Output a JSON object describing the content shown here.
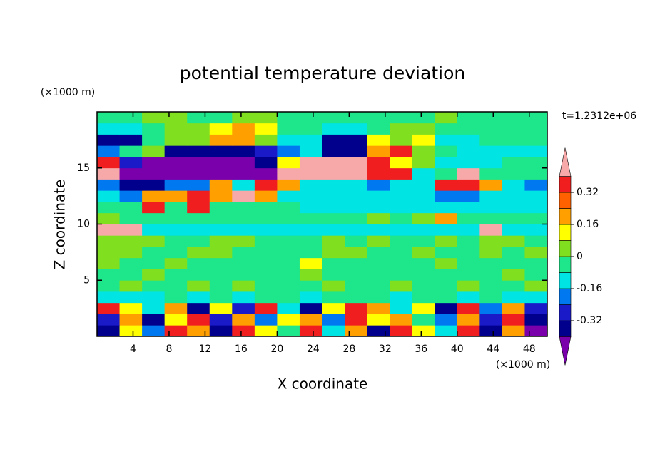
{
  "chart_data": {
    "type": "contour",
    "title": "potential temperature deviation",
    "xlabel": "X coordinate",
    "ylabel": "Z coordinate",
    "x_unit": "(×1000 m)",
    "y_unit": "(×1000 m)",
    "annotation": "t=1.2312e+06",
    "xlim": [
      0,
      50
    ],
    "ylim": [
      0,
      20
    ],
    "xticks": [
      4,
      8,
      12,
      16,
      20,
      24,
      28,
      32,
      36,
      40,
      44,
      48
    ],
    "yticks": [
      5,
      10,
      15
    ],
    "levels": [
      -0.4,
      -0.32,
      -0.24,
      -0.16,
      -0.08,
      0,
      0.08,
      0.16,
      0.24,
      0.32,
      0.4
    ],
    "colorbar_ticks": [
      0.32,
      0.16,
      0,
      -0.16,
      -0.32
    ],
    "colors": [
      "#7a00ac",
      "#00008c",
      "#1a1ac8",
      "#0078f0",
      "#00e4e4",
      "#1ee68a",
      "#80e020",
      "#ffff00",
      "#ffa000",
      "#ff6000",
      "#f01e1e",
      "#f7a8a8"
    ],
    "x": [
      1.25,
      3.75,
      6.25,
      8.75,
      11.25,
      13.75,
      16.25,
      18.75,
      21.25,
      23.75,
      26.25,
      28.75,
      31.25,
      33.75,
      36.25,
      38.75,
      41.25,
      43.75,
      46.25,
      48.75
    ],
    "y": [
      0.5,
      1.5,
      2.5,
      3.5,
      4.5,
      5.5,
      6.5,
      7.5,
      8.5,
      9.5,
      10.5,
      11.5,
      12.5,
      13.5,
      14.5,
      15.5,
      16.5,
      17.5,
      18.5,
      19.5
    ],
    "z": [
      [
        -0.36,
        0.12,
        -0.2,
        0.36,
        0.2,
        -0.36,
        0.36,
        0.12,
        -0.04,
        0.36,
        -0.12,
        0.2,
        -0.36,
        0.36,
        0.12,
        -0.12,
        0.36,
        -0.36,
        0.2,
        -0.45
      ],
      [
        -0.28,
        0.2,
        -0.36,
        0.12,
        0.36,
        -0.28,
        0.2,
        -0.2,
        0.12,
        0.2,
        -0.2,
        0.36,
        0.12,
        0.2,
        -0.04,
        -0.2,
        0.2,
        -0.28,
        0.36,
        -0.36
      ],
      [
        0.36,
        0.12,
        -0.12,
        0.2,
        -0.36,
        0.12,
        -0.28,
        0.36,
        -0.12,
        -0.36,
        0.12,
        0.36,
        0.2,
        -0.12,
        0.12,
        -0.36,
        0.36,
        -0.2,
        0.2,
        -0.28
      ],
      [
        -0.12,
        -0.12,
        -0.12,
        -0.04,
        -0.12,
        -0.04,
        -0.12,
        -0.04,
        -0.04,
        -0.12,
        -0.04,
        -0.04,
        -0.04,
        -0.12,
        -0.04,
        -0.04,
        -0.12,
        -0.04,
        -0.12,
        -0.12
      ],
      [
        -0.04,
        0.04,
        -0.04,
        -0.04,
        0.04,
        -0.04,
        0.04,
        -0.04,
        -0.04,
        -0.04,
        0.04,
        -0.04,
        -0.04,
        0.04,
        -0.04,
        -0.04,
        0.04,
        -0.04,
        -0.04,
        0.04
      ],
      [
        -0.04,
        -0.04,
        0.04,
        -0.04,
        -0.04,
        -0.04,
        -0.04,
        -0.04,
        -0.04,
        0.04,
        -0.04,
        -0.04,
        -0.04,
        -0.04,
        -0.04,
        -0.04,
        -0.04,
        -0.04,
        0.04,
        -0.04
      ],
      [
        0.04,
        -0.04,
        -0.04,
        0.04,
        -0.04,
        -0.04,
        -0.04,
        -0.04,
        -0.04,
        0.12,
        -0.04,
        -0.04,
        -0.04,
        -0.04,
        -0.04,
        0.04,
        -0.04,
        -0.04,
        -0.04,
        -0.04
      ],
      [
        0.04,
        0.04,
        -0.04,
        -0.04,
        0.04,
        0.04,
        -0.04,
        -0.04,
        -0.04,
        -0.04,
        0.04,
        0.04,
        -0.04,
        -0.04,
        0.04,
        -0.04,
        -0.04,
        0.04,
        -0.04,
        0.04
      ],
      [
        0.04,
        0.04,
        0.04,
        -0.04,
        -0.04,
        0.04,
        0.04,
        -0.04,
        -0.04,
        -0.04,
        0.04,
        -0.04,
        0.04,
        -0.04,
        -0.04,
        0.04,
        -0.04,
        0.04,
        0.04,
        -0.04
      ],
      [
        0.45,
        0.45,
        -0.12,
        -0.12,
        -0.12,
        -0.12,
        -0.12,
        -0.12,
        -0.12,
        -0.12,
        -0.12,
        -0.12,
        -0.12,
        -0.12,
        -0.12,
        -0.12,
        -0.12,
        0.45,
        -0.12,
        -0.12
      ],
      [
        0.04,
        -0.04,
        -0.04,
        -0.04,
        -0.04,
        -0.04,
        -0.04,
        -0.04,
        -0.04,
        -0.04,
        -0.04,
        -0.04,
        0.04,
        -0.04,
        0.04,
        0.2,
        -0.04,
        -0.04,
        -0.04,
        -0.04
      ],
      [
        -0.04,
        -0.04,
        0.36,
        -0.04,
        0.36,
        -0.04,
        -0.04,
        -0.04,
        -0.04,
        -0.12,
        -0.12,
        -0.12,
        -0.12,
        -0.12,
        -0.12,
        -0.12,
        -0.12,
        -0.12,
        -0.12,
        -0.12
      ],
      [
        -0.12,
        -0.2,
        0.2,
        0.2,
        0.36,
        0.2,
        0.45,
        0.2,
        -0.12,
        -0.12,
        -0.12,
        -0.12,
        -0.12,
        -0.12,
        -0.12,
        -0.2,
        -0.2,
        -0.12,
        -0.12,
        -0.12
      ],
      [
        -0.2,
        -0.36,
        -0.36,
        -0.2,
        -0.2,
        0.2,
        -0.12,
        0.36,
        0.2,
        -0.12,
        -0.12,
        -0.12,
        -0.2,
        -0.12,
        -0.12,
        0.36,
        0.36,
        0.2,
        -0.12,
        -0.2
      ],
      [
        0.45,
        -0.45,
        -0.45,
        -0.45,
        -0.45,
        -0.45,
        -0.45,
        -0.45,
        0.45,
        0.45,
        0.45,
        0.45,
        0.36,
        0.36,
        -0.12,
        -0.04,
        0.45,
        -0.04,
        -0.04,
        -0.04
      ],
      [
        0.36,
        -0.28,
        -0.45,
        -0.45,
        -0.45,
        -0.45,
        -0.45,
        -0.36,
        0.12,
        0.45,
        0.45,
        0.45,
        0.36,
        0.12,
        0.04,
        -0.12,
        -0.12,
        -0.12,
        -0.04,
        -0.04
      ],
      [
        -0.2,
        -0.04,
        0.04,
        -0.36,
        -0.36,
        -0.36,
        -0.36,
        -0.28,
        -0.2,
        -0.12,
        -0.36,
        -0.36,
        0.2,
        0.36,
        0.04,
        -0.04,
        -0.12,
        -0.12,
        -0.12,
        -0.12
      ],
      [
        -0.36,
        -0.36,
        -0.04,
        0.04,
        0.04,
        0.2,
        0.2,
        0.04,
        -0.12,
        -0.12,
        -0.36,
        -0.36,
        0.12,
        0.04,
        0.12,
        -0.12,
        -0.12,
        -0.04,
        -0.04,
        -0.04
      ],
      [
        -0.12,
        -0.12,
        -0.04,
        0.04,
        0.04,
        0.12,
        0.2,
        0.12,
        -0.04,
        -0.04,
        -0.12,
        -0.12,
        -0.04,
        0.04,
        0.04,
        -0.04,
        -0.04,
        -0.04,
        -0.04,
        -0.04
      ],
      [
        -0.04,
        -0.04,
        0.04,
        0.04,
        -0.04,
        -0.04,
        0.04,
        0.04,
        -0.04,
        -0.04,
        -0.04,
        -0.04,
        -0.04,
        -0.04,
        -0.04,
        0.04,
        -0.04,
        -0.04,
        -0.04,
        -0.04
      ]
    ]
  }
}
